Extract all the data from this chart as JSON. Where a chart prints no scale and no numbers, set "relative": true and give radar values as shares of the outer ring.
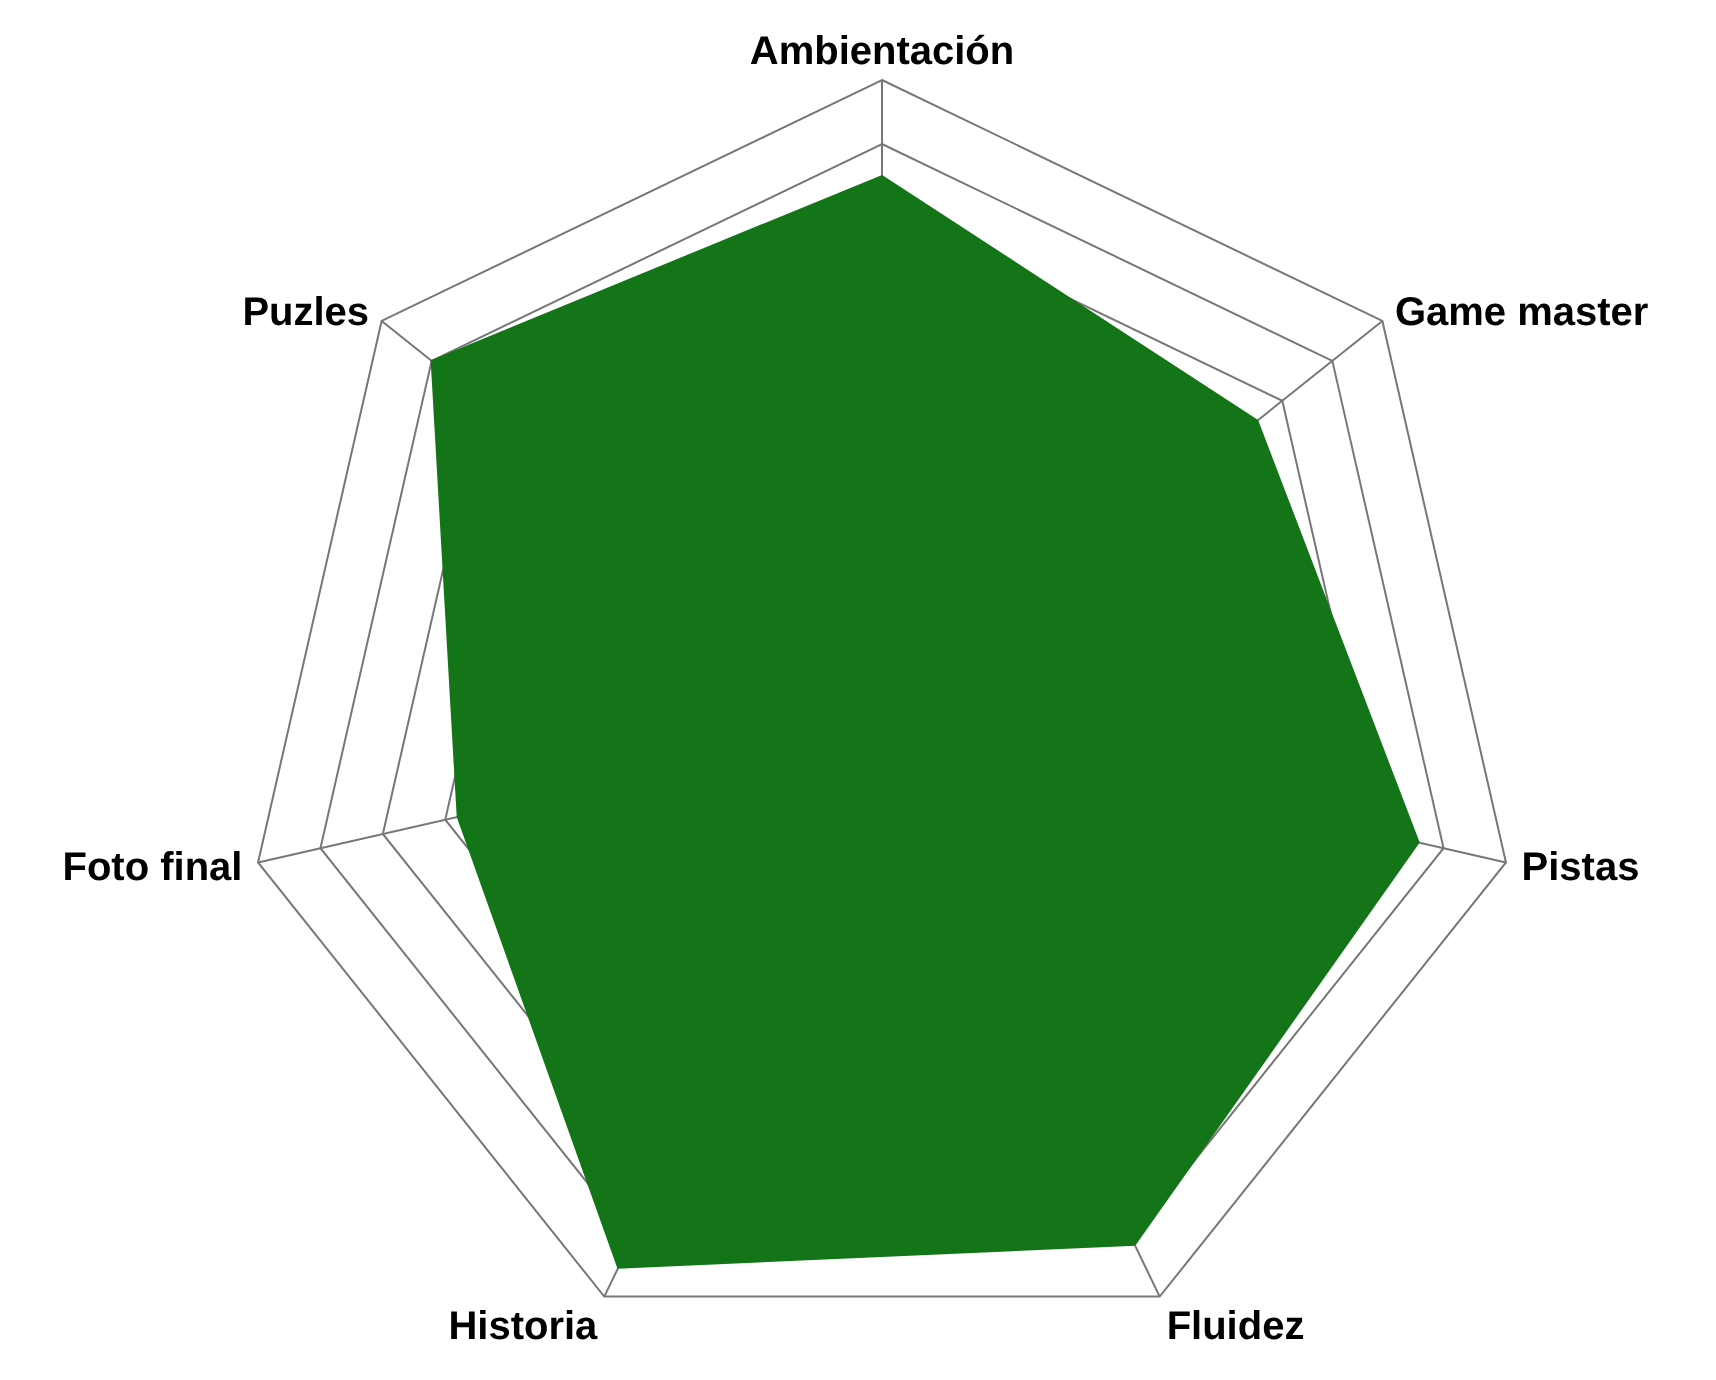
{
  "chart_data": {
    "type": "radar",
    "relative": true,
    "categories": [
      "Ambientación",
      "Game master",
      "Pistas",
      "Fluidez",
      "Historia",
      "Foto final",
      "Puzles"
    ],
    "series": [
      {
        "color": "#147518",
        "values": [
          0.85,
          0.75,
          0.86,
          0.91,
          0.95,
          0.68,
          0.9
        ]
      }
    ],
    "grid": true,
    "legend": false
  }
}
